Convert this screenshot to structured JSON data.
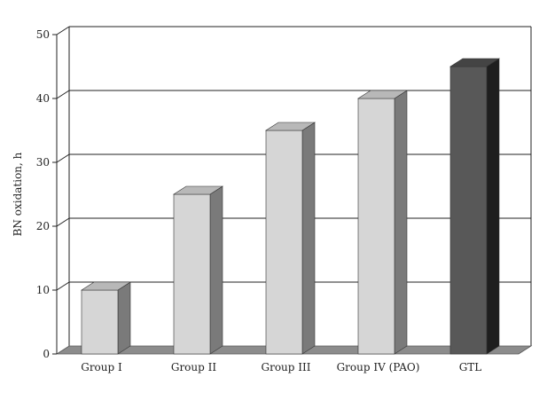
{
  "chart_data": {
    "type": "bar",
    "title": "",
    "xlabel": "",
    "ylabel": "BN oxidation, h",
    "categories": [
      "Group I",
      "Group II",
      "Group III",
      "Group IV (PAO)",
      "GTL"
    ],
    "values": [
      10,
      25,
      35,
      40,
      45
    ],
    "ylim": [
      0,
      50
    ],
    "yticks": [
      0,
      10,
      20,
      30,
      40,
      50
    ],
    "grid": true,
    "legend": "none",
    "style": "3d",
    "colors": {
      "bar_front": "#d6d6d6",
      "bar_top": "#b8b8b8",
      "bar_side": "#7a7a7a",
      "highlight_front": "#585858",
      "highlight_top": "#444444",
      "highlight_side": "#1e1e1e",
      "floor": "#8c8c8c",
      "grid": "#222222",
      "axis": "#222222"
    },
    "highlight_index": 4
  }
}
